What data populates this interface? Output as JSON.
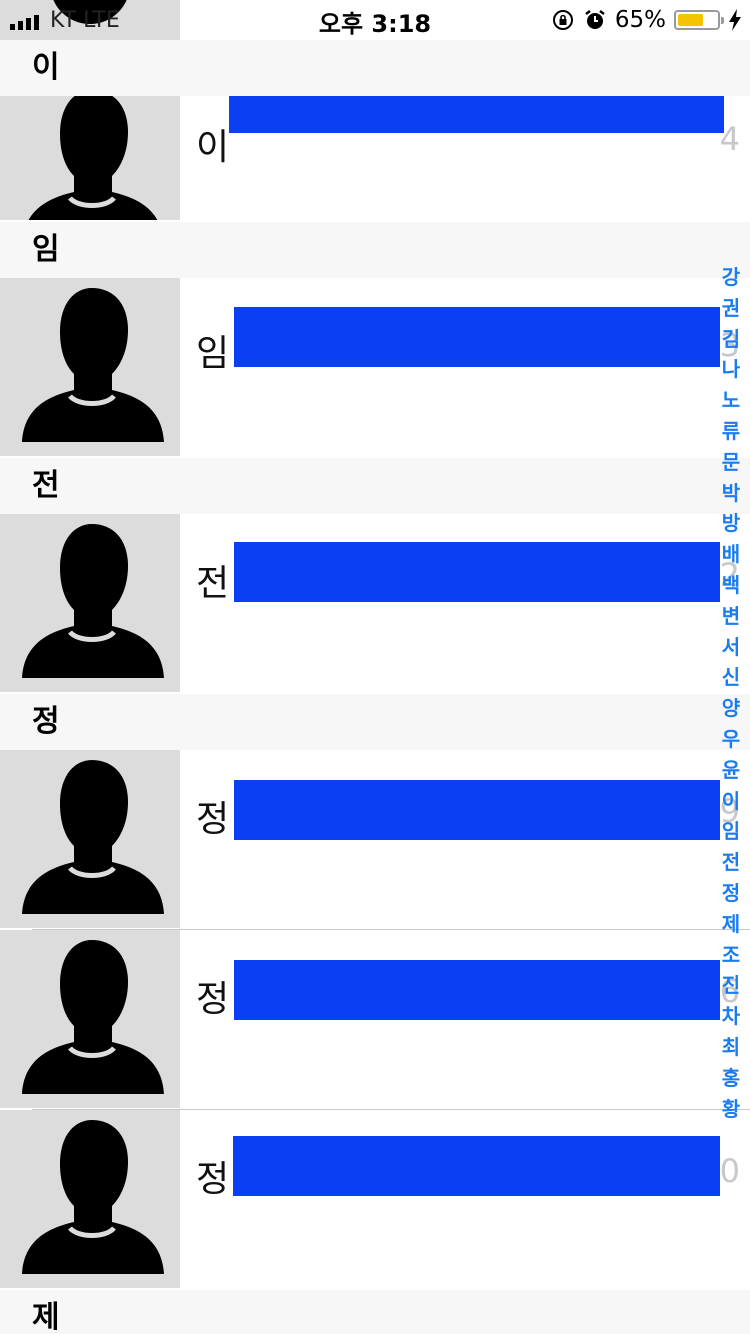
{
  "status_bar": {
    "carrier": "KT LTE",
    "time": "오후 3:18",
    "battery_percent": "65%",
    "battery_level": 0.65,
    "battery_color": "#f5c400"
  },
  "sections": [
    {
      "title": "이"
    },
    {
      "title": "임"
    },
    {
      "title": "전"
    },
    {
      "title": "정"
    },
    {
      "title": "제"
    }
  ],
  "contacts": [
    {
      "name": "이",
      "trail": "4"
    },
    {
      "name": "임",
      "trail": "3"
    },
    {
      "name": "전",
      "trail": "2"
    },
    {
      "name": "정",
      "trail": "9"
    },
    {
      "name": "정",
      "trail": "6"
    },
    {
      "name": "정",
      "trail": "0"
    }
  ],
  "redaction_color": "#0a3ff4",
  "index_color": "#1a7cf0",
  "index_letters": [
    "강",
    "권",
    "김",
    "나",
    "노",
    "류",
    "문",
    "박",
    "방",
    "배",
    "백",
    "변",
    "서",
    "신",
    "양",
    "우",
    "윤",
    "이",
    "임",
    "전",
    "정",
    "제",
    "조",
    "진",
    "차",
    "최",
    "홍",
    "황"
  ],
  "icons": {
    "avatar": "person-silhouette-icon",
    "rotation_lock": "rotation-lock-icon",
    "alarm": "alarm-clock-icon",
    "charging": "lightning-bolt-icon",
    "signal": "signal-bars-icon"
  }
}
